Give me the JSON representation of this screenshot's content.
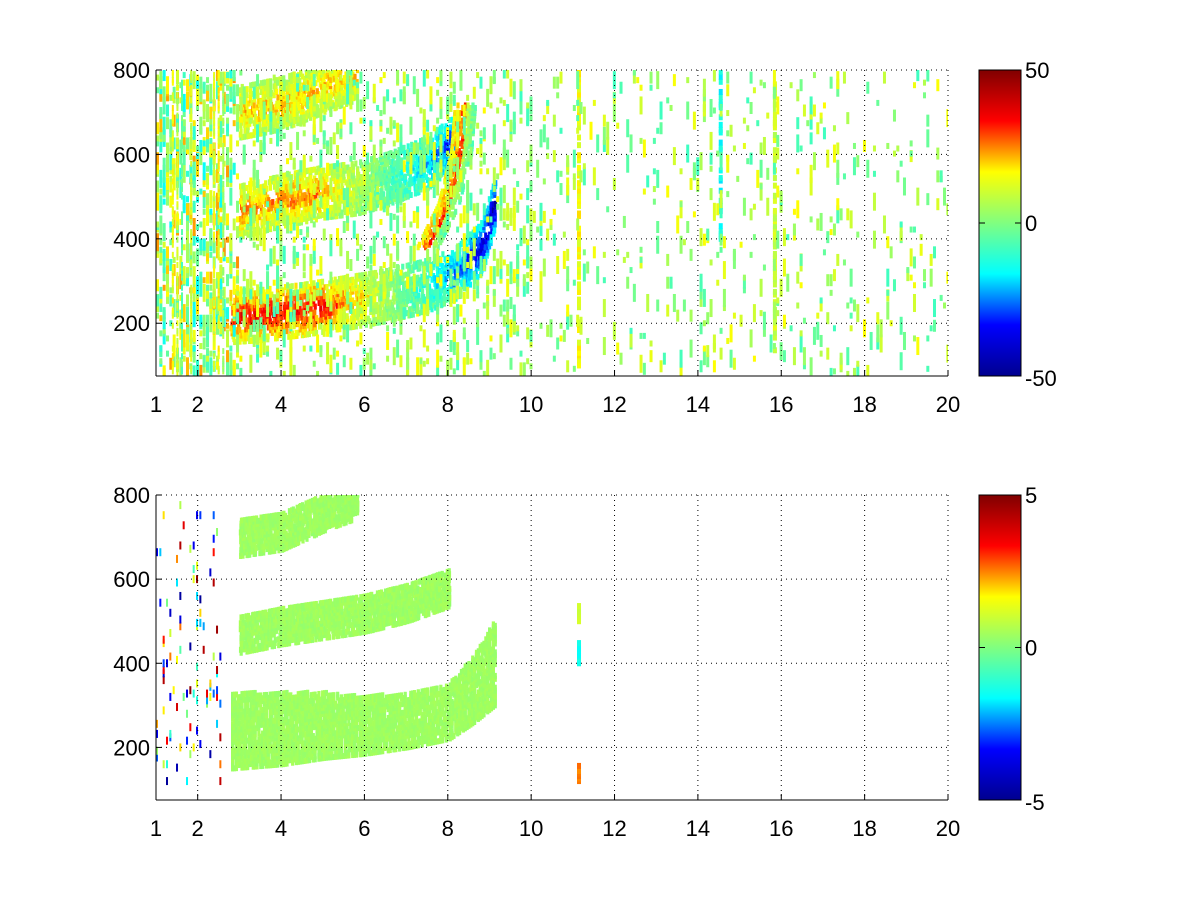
{
  "colormap": "jet",
  "colormap_stops": [
    "#00008f",
    "#0000ff",
    "#00ffff",
    "#80ff80",
    "#ffff00",
    "#ff0000",
    "#800000"
  ],
  "chart_data": [
    {
      "type": "heatmap",
      "title": "",
      "xlabel": "",
      "ylabel": "",
      "xlim": [
        1,
        20
      ],
      "ylim": [
        75,
        800
      ],
      "x_ticks": [
        "1",
        "2",
        "4",
        "6",
        "8",
        "10",
        "12",
        "14",
        "16",
        "18",
        "20"
      ],
      "x_tick_values": [
        1,
        2,
        4,
        6,
        8,
        10,
        12,
        14,
        16,
        18,
        20
      ],
      "y_ticks": [
        "200",
        "400",
        "600",
        "800"
      ],
      "y_tick_values": [
        200,
        400,
        600,
        800
      ],
      "grid": true,
      "color_range": [
        -50,
        50
      ],
      "colorbar_ticks": [
        "50",
        "0",
        "-50"
      ],
      "colorbar_tick_values": [
        50,
        0,
        -50
      ],
      "background": "white",
      "features": [
        {
          "kind": "band",
          "x": [
            2.8,
            3.5,
            4.5,
            5.5,
            6.5,
            7.5,
            8.2,
            8.8,
            9.1
          ],
          "y": [
            215,
            220,
            232,
            248,
            265,
            290,
            320,
            380,
            480
          ],
          "value": 35,
          "x_end_value": -45
        },
        {
          "kind": "band",
          "x": [
            3.0,
            4.0,
            5.0,
            5.8,
            6.5,
            7.5,
            8.2
          ],
          "y": [
            465,
            490,
            510,
            520,
            540,
            580,
            640
          ],
          "value": 25,
          "x_end_value": -35
        },
        {
          "kind": "band",
          "x": [
            3.0,
            4.0,
            5.0,
            5.8
          ],
          "y": [
            700,
            720,
            760,
            790
          ],
          "value": 20
        },
        {
          "kind": "curve",
          "x": [
            7.5,
            8.0,
            8.3,
            8.4
          ],
          "y": [
            380,
            480,
            600,
            720
          ],
          "value": 30
        },
        {
          "kind": "stripe",
          "x": 11.1,
          "y": [
            100,
            800
          ],
          "value": 15
        },
        {
          "kind": "stripe",
          "x": 14.5,
          "y": [
            400,
            800
          ],
          "value": -15
        },
        {
          "kind": "stripe",
          "x": 15.8,
          "y": [
            100,
            800
          ],
          "value": 10
        }
      ]
    },
    {
      "type": "heatmap",
      "title": "",
      "xlabel": "",
      "ylabel": "",
      "xlim": [
        1,
        20
      ],
      "ylim": [
        75,
        800
      ],
      "x_ticks": [
        "1",
        "2",
        "4",
        "6",
        "8",
        "10",
        "12",
        "14",
        "16",
        "18",
        "20"
      ],
      "x_tick_values": [
        1,
        2,
        4,
        6,
        8,
        10,
        12,
        14,
        16,
        18,
        20
      ],
      "y_ticks": [
        "200",
        "400",
        "600",
        "800"
      ],
      "y_tick_values": [
        200,
        400,
        600,
        800
      ],
      "grid": true,
      "color_range": [
        -5,
        5
      ],
      "colorbar_ticks": [
        "5",
        "0",
        "-5"
      ],
      "colorbar_tick_values": [
        5,
        0,
        -5
      ],
      "background": "white",
      "features": [
        {
          "kind": "region",
          "x": [
            2.8,
            4.0,
            5.0,
            6.0,
            7.0,
            8.0,
            8.6,
            9.1
          ],
          "y_low": [
            150,
            160,
            175,
            185,
            200,
            220,
            260,
            300
          ],
          "y_high": [
            330,
            330,
            330,
            320,
            330,
            350,
            420,
            500
          ],
          "value": 0.4
        },
        {
          "kind": "band",
          "x": [
            3.0,
            4.0,
            5.0,
            6.0,
            7.0,
            8.0
          ],
          "y": [
            470,
            490,
            505,
            520,
            545,
            580
          ],
          "value": 0.4
        },
        {
          "kind": "band",
          "x": [
            3.0,
            4.0,
            5.0,
            5.8
          ],
          "y": [
            700,
            715,
            760,
            790
          ],
          "value": 0.4
        },
        {
          "kind": "stripe",
          "x": 11.1,
          "y": [
            400,
            450
          ],
          "value": -1.5
        },
        {
          "kind": "stripe",
          "x": 11.1,
          "y": [
            500,
            540
          ],
          "value": 1.0
        },
        {
          "kind": "stripe",
          "x": 11.1,
          "y": [
            120,
            160
          ],
          "value": 2.5
        }
      ]
    }
  ]
}
